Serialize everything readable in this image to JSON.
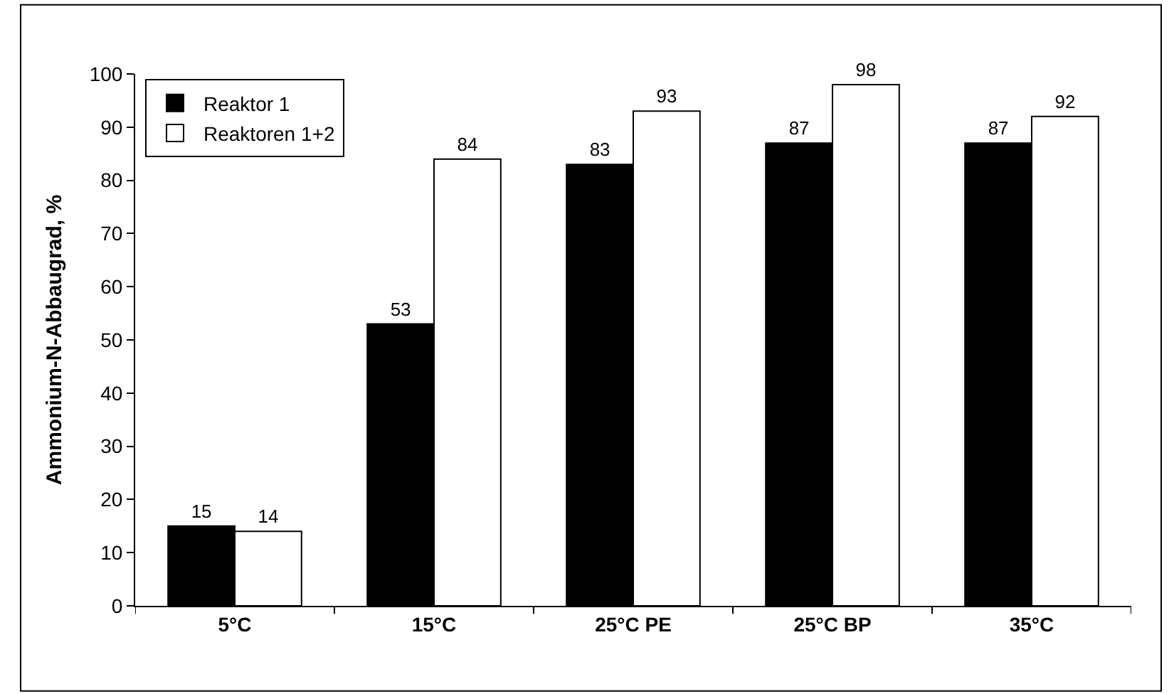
{
  "chart_data": {
    "type": "bar",
    "ylabel": "Ammonium-N-Abbaugrad, %",
    "categories": [
      "5°C",
      "15°C",
      "25°C PE",
      "25°C BP",
      "35°C"
    ],
    "series": [
      {
        "name": "Reaktor 1",
        "color": "#000000",
        "values": [
          15,
          53,
          83,
          87,
          87
        ]
      },
      {
        "name": "Reaktoren 1+2",
        "color": "#ffffff",
        "values": [
          14,
          84,
          93,
          98,
          92
        ]
      }
    ],
    "ylim": [
      0,
      100
    ],
    "yticks": [
      0,
      10,
      20,
      30,
      40,
      50,
      60,
      70,
      80,
      90,
      100
    ],
    "grid": false,
    "legend": "top left",
    "data_labels": true
  }
}
